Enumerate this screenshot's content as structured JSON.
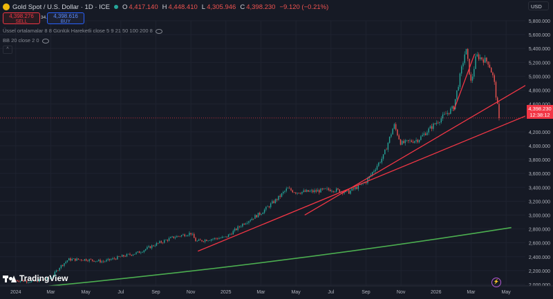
{
  "header": {
    "title": "Gold Spot / U.S. Dollar · 1D · ICE",
    "ohlc": [
      {
        "label": "O",
        "value": "4,417.140"
      },
      {
        "label": "H",
        "value": "4,448.410"
      },
      {
        "label": "L",
        "value": "4,305.946"
      },
      {
        "label": "C",
        "value": "4,398.230"
      }
    ],
    "change": "−9.120 (−0.21%)"
  },
  "trade": {
    "sell_price": "4,398.276",
    "sell_label": "SELL",
    "spread": "34.0",
    "buy_price": "4,398.616",
    "buy_label": "BUY"
  },
  "indicators": [
    "Üssel ortalamalar 8 8 Günlük Hareketli close 5 9 21 50 100 200 8",
    "BB 20 close 2 0"
  ],
  "currency": "USD",
  "last_price": {
    "value": "4,398.230",
    "countdown": "12:38:12"
  },
  "logo": "TradingView",
  "colors": {
    "up": "#26a69a",
    "down": "#ef5350",
    "trendline": "#f23645",
    "ma": "#4caf50",
    "price_line": "#f23645"
  },
  "chart_data": {
    "type": "candlestick",
    "title": "Gold Spot / U.S. Dollar · 1D · ICE",
    "x_tick_labels": [
      "2024",
      "Mar",
      "May",
      "Jul",
      "Sep",
      "Nov",
      "2025",
      "Mar",
      "May",
      "Jul",
      "Sep",
      "Nov",
      "2026",
      "Mar",
      "May"
    ],
    "x_tick_index": [
      0,
      2,
      4,
      6,
      8,
      10,
      12,
      14,
      16,
      18,
      20,
      22,
      24,
      26,
      28
    ],
    "y_tick_labels": [
      "2,000.000",
      "2,200.000",
      "2,400.000",
      "2,600.000",
      "2,800.000",
      "3,000.000",
      "3,200.000",
      "3,400.000",
      "3,600.000",
      "3,800.000",
      "4,000.000",
      "4,200.000",
      "4,600.000",
      "4,800.000",
      "5,000.000",
      "5,200.000",
      "5,400.000",
      "5,600.000",
      "5,800.000"
    ],
    "y_tick_values": [
      2000,
      2200,
      2400,
      2600,
      2800,
      3000,
      3200,
      3400,
      3600,
      3800,
      4000,
      4200,
      4600,
      4800,
      5000,
      5200,
      5400,
      5600,
      5800
    ],
    "ylim": [
      1980,
      5800
    ],
    "xlim": [
      -0.9,
      29.1
    ],
    "price_path": [
      [
        0,
        2060
      ],
      [
        1,
        2040
      ],
      [
        2,
        2090
      ],
      [
        2.5,
        2250
      ],
      [
        3,
        2360
      ],
      [
        4,
        2360
      ],
      [
        5,
        2330
      ],
      [
        6,
        2400
      ],
      [
        7,
        2460
      ],
      [
        8,
        2580
      ],
      [
        9,
        2680
      ],
      [
        10,
        2740
      ],
      [
        10.3,
        2620
      ],
      [
        11,
        2650
      ],
      [
        12,
        2680
      ],
      [
        13,
        2880
      ],
      [
        14,
        3030
      ],
      [
        15,
        3250
      ],
      [
        15.5,
        3380
      ],
      [
        16,
        3330
      ],
      [
        17,
        3340
      ],
      [
        18,
        3370
      ],
      [
        19,
        3330
      ],
      [
        20,
        3480
      ],
      [
        21,
        3850
      ],
      [
        21.6,
        4300
      ],
      [
        22,
        4030
      ],
      [
        23,
        4090
      ],
      [
        24,
        4330
      ],
      [
        25,
        4550
      ],
      [
        25.7,
        5400
      ],
      [
        26,
        4900
      ],
      [
        26.3,
        5300
      ],
      [
        27,
        5200
      ],
      [
        27.3,
        4950
      ],
      [
        27.6,
        4398
      ]
    ],
    "last_close": 4398.23,
    "trendlines": [
      {
        "from": [
          10.4,
          2480
        ],
        "to": [
          30,
          4520
        ]
      },
      {
        "from": [
          16.5,
          3000
        ],
        "to": [
          30,
          5000
        ]
      },
      {
        "from": [
          25,
          4500
        ],
        "to": [
          26.2,
          5320
        ]
      }
    ],
    "moving_average": {
      "from": [
        -1,
        1910
      ],
      "mid": [
        14,
        2370
      ],
      "to": [
        28.3,
        2820
      ]
    }
  }
}
